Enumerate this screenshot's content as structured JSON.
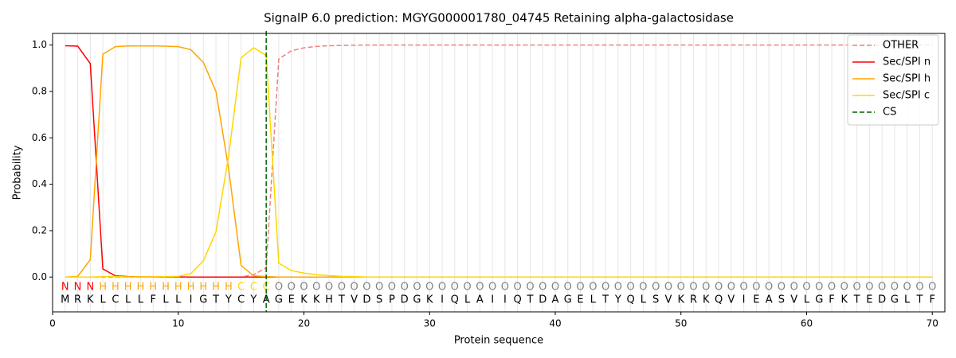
{
  "chart_data": {
    "type": "line",
    "title": "SignalP 6.0 prediction: MGYG000001780_04745 Retaining alpha-galactosidase",
    "x_label": "Protein sequence",
    "y_label": "Probability",
    "xlim": [
      0,
      71
    ],
    "ylim": [
      -0.15,
      1.05
    ],
    "xticks": [
      0,
      10,
      20,
      30,
      40,
      50,
      60,
      70
    ],
    "yticks": [
      {
        "value": 0,
        "label": "0.0"
      },
      {
        "value": 0.2,
        "label": "0.2"
      },
      {
        "value": 0.4,
        "label": "0.4"
      },
      {
        "value": 0.6,
        "label": "0.6"
      },
      {
        "value": 0.8,
        "label": "0.8"
      },
      {
        "value": 1,
        "label": "1.0"
      }
    ],
    "legend": "upper right",
    "x": [
      1,
      2,
      3,
      4,
      5,
      6,
      7,
      8,
      9,
      10,
      11,
      12,
      13,
      14,
      15,
      16,
      17,
      18,
      19,
      20,
      21,
      22,
      23,
      24,
      25,
      26,
      27,
      28,
      29,
      30,
      31,
      32,
      33,
      34,
      35,
      36,
      37,
      38,
      39,
      40,
      41,
      42,
      43,
      44,
      45,
      46,
      47,
      48,
      49,
      50,
      51,
      52,
      53,
      54,
      55,
      56,
      57,
      58,
      59,
      60,
      61,
      62,
      63,
      64,
      65,
      66,
      67,
      68,
      69,
      70
    ],
    "series": [
      {
        "name": "OTHER",
        "color": "#f08080",
        "dashed": true,
        "values": [
          0,
          0,
          0,
          0,
          0,
          0,
          0,
          0,
          0,
          0,
          0,
          0,
          0,
          0,
          0,
          0.01,
          0.04,
          0.94,
          0.975,
          0.988,
          0.994,
          0.997,
          0.998,
          0.999,
          1,
          1,
          1,
          1,
          1,
          1,
          1,
          1,
          1,
          1,
          1,
          1,
          1,
          1,
          1,
          1,
          1,
          1,
          1,
          1,
          1,
          1,
          1,
          1,
          1,
          1,
          1,
          1,
          1,
          1,
          1,
          1,
          1,
          1,
          1,
          1,
          1,
          1,
          1,
          1,
          1,
          1,
          1,
          1,
          1,
          1
        ]
      },
      {
        "name": "Sec/SPI n",
        "color": "#ff0000",
        "values": [
          0.997,
          0.995,
          0.92,
          0.035,
          0.005,
          0.002,
          0.001,
          0.001,
          0.001,
          0.001,
          0,
          0,
          0,
          0,
          0,
          0,
          0,
          0,
          0,
          0,
          0,
          0,
          0,
          0,
          0,
          0,
          0,
          0,
          0,
          0,
          0,
          0,
          0,
          0,
          0,
          0,
          0,
          0,
          0,
          0,
          0,
          0,
          0,
          0,
          0,
          0,
          0,
          0,
          0,
          0,
          0,
          0,
          0,
          0,
          0,
          0,
          0,
          0,
          0,
          0,
          0,
          0,
          0,
          0,
          0,
          0,
          0,
          0,
          0,
          0
        ]
      },
      {
        "name": "Sec/SPI h",
        "color": "#ffa500",
        "values": [
          0,
          0.003,
          0.075,
          0.96,
          0.993,
          0.996,
          0.996,
          0.996,
          0.995,
          0.993,
          0.98,
          0.925,
          0.8,
          0.47,
          0.05,
          0.005,
          0.002,
          0,
          0,
          0,
          0,
          0,
          0,
          0,
          0,
          0,
          0,
          0,
          0,
          0,
          0,
          0,
          0,
          0,
          0,
          0,
          0,
          0,
          0,
          0,
          0,
          0,
          0,
          0,
          0,
          0,
          0,
          0,
          0,
          0,
          0,
          0,
          0,
          0,
          0,
          0,
          0,
          0,
          0,
          0,
          0,
          0,
          0,
          0,
          0,
          0,
          0,
          0,
          0,
          0
        ]
      },
      {
        "name": "Sec/SPI c",
        "color": "#ffd700",
        "values": [
          0,
          0,
          0,
          0.002,
          0.002,
          0.001,
          0.001,
          0.001,
          0.002,
          0.003,
          0.015,
          0.07,
          0.195,
          0.52,
          0.945,
          0.988,
          0.955,
          0.06,
          0.028,
          0.017,
          0.01,
          0.006,
          0.003,
          0.002,
          0,
          0,
          0,
          0,
          0,
          0,
          0,
          0,
          0,
          0,
          0,
          0,
          0,
          0,
          0,
          0,
          0,
          0,
          0,
          0,
          0,
          0,
          0,
          0,
          0,
          0,
          0,
          0,
          0,
          0,
          0,
          0,
          0,
          0,
          0,
          0,
          0,
          0,
          0,
          0,
          0,
          0,
          0,
          0,
          0,
          0
        ]
      }
    ],
    "cs": {
      "name": "CS",
      "color": "#006400",
      "x": 17
    },
    "residues": [
      "M",
      "R",
      "K",
      "L",
      "C",
      "L",
      "L",
      "F",
      "L",
      "L",
      "I",
      "G",
      "T",
      "Y",
      "C",
      "Y",
      "A",
      "G",
      "E",
      "K",
      "K",
      "H",
      "T",
      "V",
      "D",
      "S",
      "P",
      "D",
      "G",
      "K",
      "I",
      "Q",
      "L",
      "A",
      "I",
      "I",
      "Q",
      "T",
      "D",
      "A",
      "G",
      "E",
      "L",
      "T",
      "Y",
      "Q",
      "L",
      "S",
      "V",
      "K",
      "R",
      "K",
      "Q",
      "V",
      "I",
      "E",
      "A",
      "S",
      "V",
      "L",
      "G",
      "F",
      "K",
      "T",
      "E",
      "D",
      "G",
      "L",
      "T",
      "F"
    ],
    "labels": [
      "N",
      "N",
      "N",
      "H",
      "H",
      "H",
      "H",
      "H",
      "H",
      "H",
      "H",
      "H",
      "H",
      "H",
      "C",
      "C",
      "C",
      "O",
      "O",
      "O",
      "O",
      "O",
      "O",
      "O",
      "O",
      "O",
      "O",
      "O",
      "O",
      "O",
      "O",
      "O",
      "O",
      "O",
      "O",
      "O",
      "O",
      "O",
      "O",
      "O",
      "O",
      "O",
      "O",
      "O",
      "O",
      "O",
      "O",
      "O",
      "O",
      "O",
      "O",
      "O",
      "O",
      "O",
      "O",
      "O",
      "O",
      "O",
      "O",
      "O",
      "O",
      "O",
      "O",
      "O",
      "O",
      "O",
      "O",
      "O",
      "O",
      "O"
    ],
    "label_colors": {
      "N": "#ff0000",
      "H": "#ffa500",
      "C": "#ffd700",
      "O": "#808080"
    }
  }
}
